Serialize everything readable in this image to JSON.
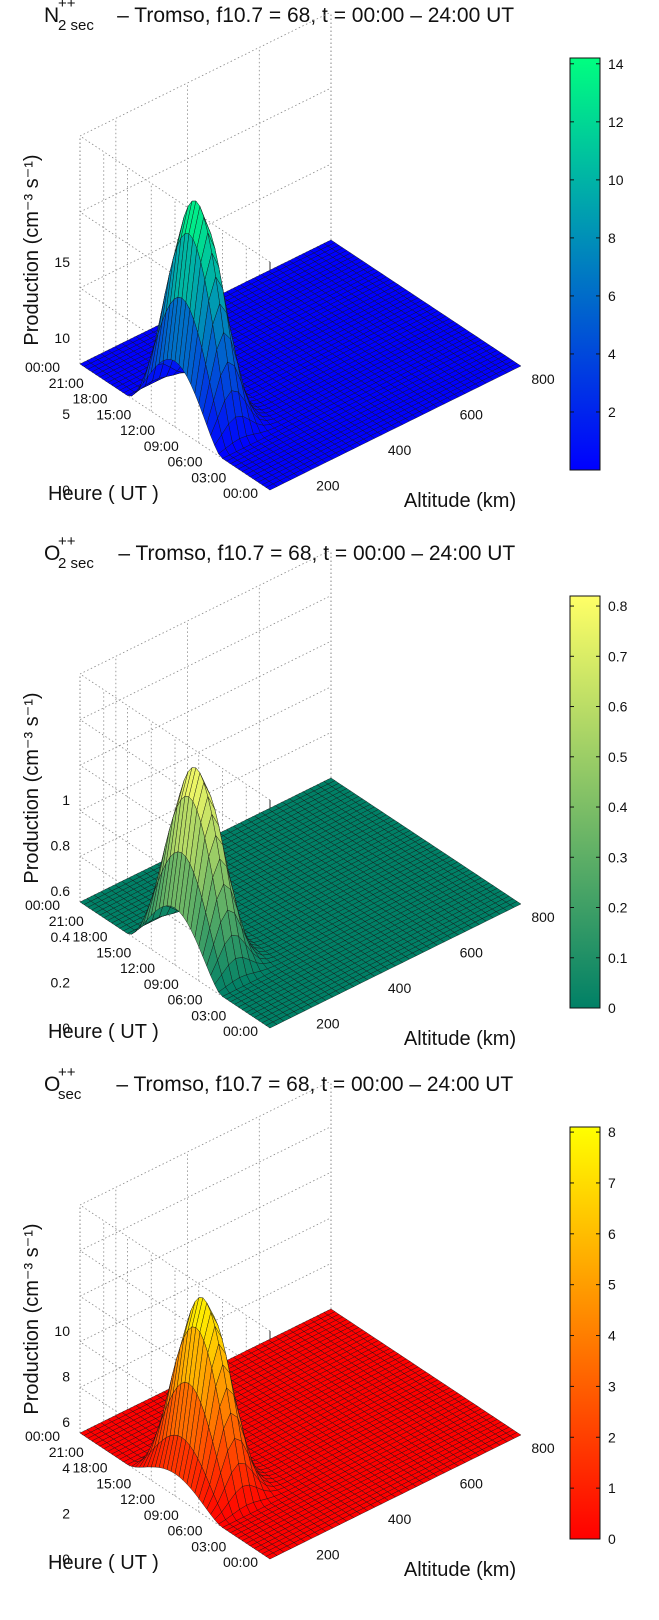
{
  "chart_data": [
    {
      "type": "surface",
      "title": {
        "species": "N",
        "subscript_number": "2",
        "subscript": "sec",
        "superscript": "++",
        "text": "– Tromso, f10.7 = 68, t = 00:00 – 24:00 UT"
      },
      "xlabel": "Altitude (km)",
      "ylabel": "Heure ( UT )",
      "zlabel": "Production (cm⁻³ s⁻¹)",
      "altitude_ticks": [
        "200",
        "400",
        "600",
        "800"
      ],
      "altitude_range": [
        100,
        800
      ],
      "hour_ticks": [
        "00:00",
        "03:00",
        "06:00",
        "09:00",
        "12:00",
        "15:00",
        "18:00",
        "21:00",
        "00:00"
      ],
      "hour_range": [
        0,
        24
      ],
      "zticks": [
        "0",
        "5",
        "10",
        "15"
      ],
      "zlim": [
        0,
        15
      ],
      "colorbar_ticks": [
        "2",
        "4",
        "6",
        "8",
        "10",
        "12",
        "14"
      ],
      "colorbar_range": [
        0,
        14.2
      ],
      "colormap": [
        "#0000ff",
        "#00ff80"
      ],
      "peak": {
        "altitude_km": 160,
        "hour_ut": 12,
        "value": 14.2
      },
      "grid": true
    },
    {
      "type": "surface",
      "title": {
        "species": "O",
        "subscript_number": "2",
        "subscript": "sec",
        "superscript": "++",
        "text": "– Tromso, f10.7 = 68, t = 00:00 – 24:00 UT"
      },
      "xlabel": "Altitude (km)",
      "ylabel": "Heure ( UT )",
      "zlabel": "Production (cm⁻³ s⁻¹)",
      "altitude_ticks": [
        "200",
        "400",
        "600",
        "800"
      ],
      "altitude_range": [
        100,
        800
      ],
      "hour_ticks": [
        "00:00",
        "03:00",
        "06:00",
        "09:00",
        "12:00",
        "15:00",
        "18:00",
        "21:00",
        "00:00"
      ],
      "hour_range": [
        0,
        24
      ],
      "zticks": [
        "0",
        "0.2",
        "0.4",
        "0.6",
        "0.8",
        "1"
      ],
      "zlim": [
        0,
        1
      ],
      "colorbar_ticks": [
        "0",
        "0.1",
        "0.2",
        "0.3",
        "0.4",
        "0.5",
        "0.6",
        "0.7",
        "0.8"
      ],
      "colorbar_range": [
        0,
        0.82
      ],
      "colormap": [
        "#008066",
        "#ffff66"
      ],
      "peak": {
        "altitude_km": 160,
        "hour_ut": 12,
        "value": 0.82
      },
      "grid": true
    },
    {
      "type": "surface",
      "title": {
        "species": "O",
        "subscript_number": "",
        "subscript": "sec",
        "superscript": "++",
        "text": "– Tromso, f10.7 = 68, t = 00:00 – 24:00 UT"
      },
      "xlabel": "Altitude (km)",
      "ylabel": "Heure ( UT )",
      "zlabel": "Production (cm⁻³ s⁻¹)",
      "altitude_ticks": [
        "200",
        "400",
        "600",
        "800"
      ],
      "altitude_range": [
        100,
        800
      ],
      "hour_ticks": [
        "00:00",
        "03:00",
        "06:00",
        "09:00",
        "12:00",
        "15:00",
        "18:00",
        "21:00",
        "00:00"
      ],
      "hour_range": [
        0,
        24
      ],
      "zticks": [
        "0",
        "2",
        "4",
        "6",
        "8",
        "10"
      ],
      "zlim": [
        0,
        10
      ],
      "colorbar_ticks": [
        "0",
        "1",
        "2",
        "3",
        "4",
        "5",
        "6",
        "7",
        "8"
      ],
      "colorbar_range": [
        0,
        8.1
      ],
      "colormap": [
        "#ff0000",
        "#ffff00"
      ],
      "peak": {
        "altitude_km": 180,
        "hour_ut": 12,
        "value": 8.1
      },
      "grid": true
    }
  ]
}
